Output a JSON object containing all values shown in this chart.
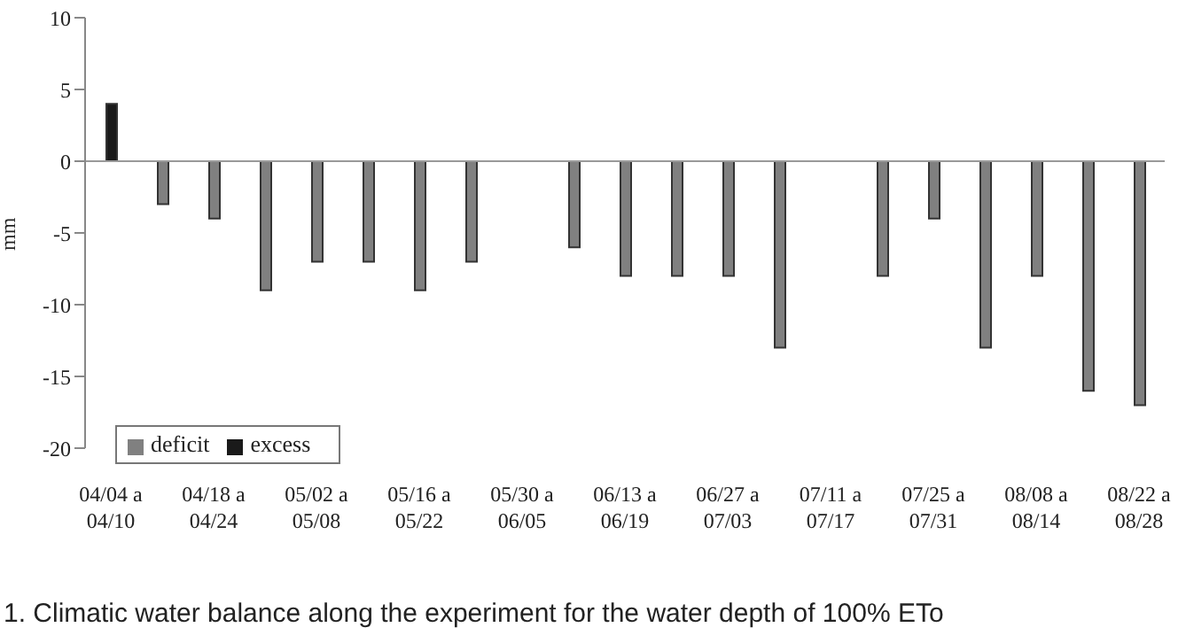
{
  "chart_data": {
    "type": "bar",
    "stacked": true,
    "ylabel": "mm",
    "categories": [
      "04/04 a\n04/10",
      null,
      "04/18 a\n04/24",
      null,
      "05/02 a\n05/08",
      null,
      "05/16 a\n05/22",
      null,
      "05/30 a\n06/05",
      null,
      "06/13 a\n06/19",
      null,
      "06/27 a\n07/03",
      null,
      "07/11 a\n07/17",
      null,
      "07/25 a\n07/31",
      null,
      "08/08 a\n08/14",
      null,
      "08/22 a\n08/28"
    ],
    "series": [
      {
        "name": "deficit",
        "color": "#808080",
        "values": [
          null,
          -3,
          -4,
          -9,
          -7,
          -7,
          -9,
          -7,
          null,
          -6,
          -8,
          -8,
          -8,
          -13,
          null,
          -8,
          -4,
          -13,
          -8,
          -16,
          -17
        ]
      },
      {
        "name": "excess",
        "color": "#1a1a1a",
        "values": [
          4,
          null,
          null,
          null,
          null,
          null,
          null,
          null,
          null,
          null,
          null,
          null,
          null,
          null,
          null,
          null,
          null,
          null,
          null,
          null,
          null
        ]
      }
    ],
    "ref_lines": [
      {
        "axis": "y",
        "value": 0,
        "color": "#999999"
      }
    ],
    "ylim": [
      -20,
      10
    ],
    "yticks": [
      -20,
      -15,
      -10,
      -5,
      0,
      5,
      10
    ],
    "grid": false,
    "legend": "bottom left",
    "annotations": [
      "1. Climatic water balance along the experiment for the water depth of 100% ETo"
    ]
  }
}
